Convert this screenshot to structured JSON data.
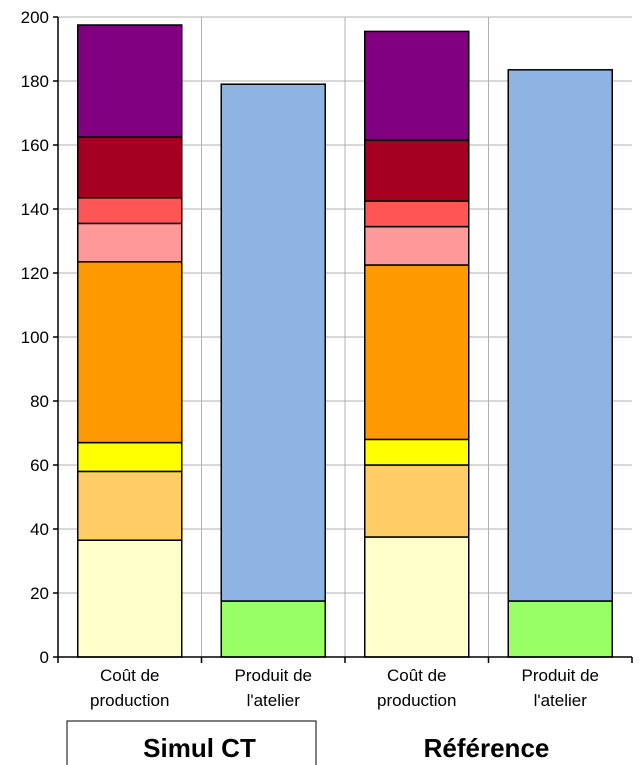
{
  "chart_data": {
    "type": "bar",
    "stacked": true,
    "ylim": [
      0,
      200
    ],
    "yticks": [
      0,
      20,
      40,
      60,
      80,
      100,
      120,
      140,
      160,
      180,
      200
    ],
    "grid": true,
    "groups": [
      "Simul CT",
      "Référence"
    ],
    "categories": [
      [
        "Coût de",
        "production"
      ],
      [
        "Produit de",
        "l'atelier"
      ],
      [
        "Coût de",
        "production"
      ],
      [
        "Produit de",
        "l'atelier"
      ]
    ],
    "series": [
      {
        "color": "#ffffcc",
        "values": [
          36.5,
          0,
          37.5,
          0
        ]
      },
      {
        "color": "#ffcc66",
        "values": [
          21.5,
          0,
          22.5,
          0
        ]
      },
      {
        "color": "#ffff00",
        "values": [
          9,
          0,
          8,
          0
        ]
      },
      {
        "color": "#ff9900",
        "values": [
          56.5,
          0,
          54.5,
          0
        ]
      },
      {
        "color": "#ff9999",
        "values": [
          12,
          0,
          12,
          0
        ]
      },
      {
        "color": "#ff5555",
        "values": [
          8,
          0,
          8,
          0
        ]
      },
      {
        "color": "#a50021",
        "values": [
          19,
          0,
          19,
          0
        ]
      },
      {
        "color": "#800080",
        "values": [
          35,
          0,
          34,
          0
        ]
      },
      {
        "color": "#99ff66",
        "values": [
          0,
          17.5,
          0,
          17.5
        ]
      },
      {
        "color": "#8eb4e3",
        "values": [
          0,
          161.5,
          0,
          166
        ]
      }
    ]
  }
}
